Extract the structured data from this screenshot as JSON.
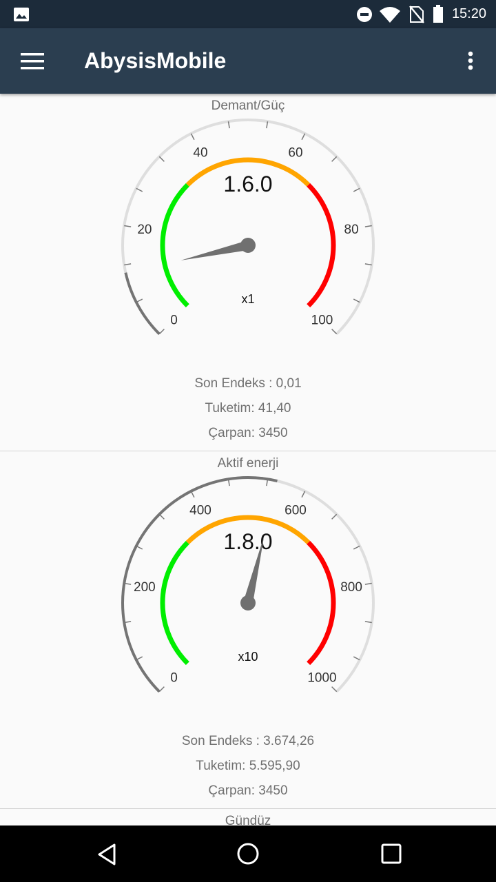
{
  "status_bar": {
    "time": "15:20",
    "icons": [
      "image-icon",
      "do-not-disturb-icon",
      "wifi-icon",
      "no-sim-icon",
      "battery-icon"
    ]
  },
  "app_bar": {
    "title": "AbysisMobile",
    "menu_icon": "hamburger-menu-icon",
    "overflow_icon": "more-vert-icon"
  },
  "cards": [
    {
      "title": "Demant/Güç",
      "reading": "1.6.0",
      "multiplier": "x1",
      "scale_labels": [
        "0",
        "20",
        "40",
        "60",
        "80",
        "100"
      ],
      "gauge_value_fraction": 0.12,
      "son_endeks": "Son Endeks : 0,01",
      "tuketim": "Tuketim: 41,40",
      "carpan": "Çarpan: 3450"
    },
    {
      "title": "Aktif enerji",
      "reading": "1.8.0",
      "multiplier": "x10",
      "scale_labels": [
        "0",
        "200",
        "400",
        "600",
        "800",
        "1000"
      ],
      "gauge_value_fraction": 0.55,
      "son_endeks": "Son Endeks : 3.674,26",
      "tuketim": "Tuketim: 5.595,90",
      "carpan": "Çarpan: 3450"
    }
  ],
  "next_card_title": "Gündüz",
  "gauge_colors": {
    "track": "#dedede",
    "progress": "#747474",
    "low": "#00ee00",
    "mid": "#ffa500",
    "high": "#ff0000",
    "needle": "#707070"
  },
  "nav_bar": {
    "icons": [
      "back-icon",
      "home-icon",
      "recents-icon"
    ]
  }
}
